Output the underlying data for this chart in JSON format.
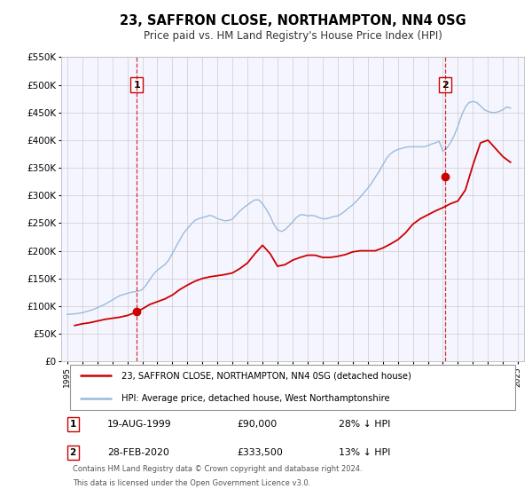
{
  "title": "23, SAFFRON CLOSE, NORTHAMPTON, NN4 0SG",
  "subtitle": "Price paid vs. HM Land Registry's House Price Index (HPI)",
  "ylim": [
    0,
    550000
  ],
  "yticks": [
    0,
    50000,
    100000,
    150000,
    200000,
    250000,
    300000,
    350000,
    400000,
    450000,
    500000,
    550000
  ],
  "ytick_labels": [
    "£0",
    "£50K",
    "£100K",
    "£150K",
    "£200K",
    "£250K",
    "£300K",
    "£350K",
    "£400K",
    "£450K",
    "£500K",
    "£550K"
  ],
  "xlim_start": 1994.6,
  "xlim_end": 2025.4,
  "hpi_color": "#99bbdd",
  "price_color": "#cc0000",
  "vline_color": "#cc0000",
  "grid_color": "#cccccc",
  "bg_color": "#ffffff",
  "plot_bg_color": "#f5f5ff",
  "legend_label_price": "23, SAFFRON CLOSE, NORTHAMPTON, NN4 0SG (detached house)",
  "legend_label_hpi": "HPI: Average price, detached house, West Northamptonshire",
  "sale1_label": "1",
  "sale1_date": "19-AUG-1999",
  "sale1_price": "£90,000",
  "sale1_pct": "28% ↓ HPI",
  "sale1_year": 1999.63,
  "sale1_value": 90000,
  "sale2_label": "2",
  "sale2_date": "28-FEB-2020",
  "sale2_price": "£333,500",
  "sale2_pct": "13% ↓ HPI",
  "sale2_year": 2020.16,
  "sale2_value": 333500,
  "footer_line1": "Contains HM Land Registry data © Crown copyright and database right 2024.",
  "footer_line2": "This data is licensed under the Open Government Licence v3.0.",
  "hpi_x": [
    1995.0,
    1995.25,
    1995.5,
    1995.75,
    1996.0,
    1996.25,
    1996.5,
    1996.75,
    1997.0,
    1997.25,
    1997.5,
    1997.75,
    1998.0,
    1998.25,
    1998.5,
    1998.75,
    1999.0,
    1999.25,
    1999.5,
    1999.75,
    2000.0,
    2000.25,
    2000.5,
    2000.75,
    2001.0,
    2001.25,
    2001.5,
    2001.75,
    2002.0,
    2002.25,
    2002.5,
    2002.75,
    2003.0,
    2003.25,
    2003.5,
    2003.75,
    2004.0,
    2004.25,
    2004.5,
    2004.75,
    2005.0,
    2005.25,
    2005.5,
    2005.75,
    2006.0,
    2006.25,
    2006.5,
    2006.75,
    2007.0,
    2007.25,
    2007.5,
    2007.75,
    2008.0,
    2008.25,
    2008.5,
    2008.75,
    2009.0,
    2009.25,
    2009.5,
    2009.75,
    2010.0,
    2010.25,
    2010.5,
    2010.75,
    2011.0,
    2011.25,
    2011.5,
    2011.75,
    2012.0,
    2012.25,
    2012.5,
    2012.75,
    2013.0,
    2013.25,
    2013.5,
    2013.75,
    2014.0,
    2014.25,
    2014.5,
    2014.75,
    2015.0,
    2015.25,
    2015.5,
    2015.75,
    2016.0,
    2016.25,
    2016.5,
    2016.75,
    2017.0,
    2017.25,
    2017.5,
    2017.75,
    2018.0,
    2018.25,
    2018.5,
    2018.75,
    2019.0,
    2019.25,
    2019.5,
    2019.75,
    2020.0,
    2020.25,
    2020.5,
    2020.75,
    2021.0,
    2021.25,
    2021.5,
    2021.75,
    2022.0,
    2022.25,
    2022.5,
    2022.75,
    2023.0,
    2023.25,
    2023.5,
    2023.75,
    2024.0,
    2024.25,
    2024.5
  ],
  "hpi_y": [
    85000,
    85500,
    86000,
    87000,
    88000,
    90000,
    92000,
    94000,
    97000,
    100000,
    103000,
    107000,
    111000,
    115000,
    119000,
    121000,
    123000,
    125000,
    126000,
    127000,
    130000,
    138000,
    148000,
    158000,
    165000,
    170000,
    175000,
    183000,
    195000,
    208000,
    220000,
    232000,
    240000,
    248000,
    255000,
    258000,
    260000,
    262000,
    264000,
    262000,
    258000,
    256000,
    254000,
    255000,
    257000,
    265000,
    272000,
    278000,
    283000,
    288000,
    292000,
    292000,
    285000,
    275000,
    263000,
    248000,
    238000,
    235000,
    238000,
    245000,
    252000,
    260000,
    265000,
    265000,
    263000,
    264000,
    263000,
    260000,
    258000,
    258000,
    260000,
    262000,
    263000,
    267000,
    272000,
    278000,
    283000,
    290000,
    297000,
    305000,
    313000,
    322000,
    333000,
    343000,
    355000,
    367000,
    375000,
    380000,
    383000,
    385000,
    387000,
    388000,
    388000,
    388000,
    388000,
    388000,
    390000,
    393000,
    395000,
    398000,
    380000,
    385000,
    395000,
    408000,
    425000,
    445000,
    460000,
    468000,
    470000,
    468000,
    462000,
    455000,
    452000,
    450000,
    450000,
    452000,
    455000,
    460000,
    458000
  ],
  "price_x": [
    1995.5,
    1996.0,
    1996.5,
    1997.0,
    1997.5,
    1998.0,
    1998.5,
    1999.0,
    1999.5,
    2000.0,
    2000.5,
    2001.0,
    2001.5,
    2002.0,
    2002.5,
    2003.0,
    2003.5,
    2004.0,
    2004.5,
    2005.0,
    2005.5,
    2006.0,
    2006.5,
    2007.0,
    2007.5,
    2008.0,
    2008.5,
    2009.0,
    2009.5,
    2010.0,
    2010.5,
    2011.0,
    2011.5,
    2012.0,
    2012.5,
    2013.0,
    2013.5,
    2014.0,
    2014.5,
    2015.0,
    2015.5,
    2016.0,
    2016.5,
    2017.0,
    2017.5,
    2018.0,
    2018.5,
    2019.0,
    2019.5,
    2020.0,
    2020.5,
    2021.0,
    2021.5,
    2022.0,
    2022.5,
    2023.0,
    2023.5,
    2024.0,
    2024.5
  ],
  "price_y": [
    65000,
    68000,
    70000,
    73000,
    76000,
    78000,
    80000,
    83000,
    88000,
    95000,
    103000,
    108000,
    113000,
    120000,
    130000,
    138000,
    145000,
    150000,
    153000,
    155000,
    157000,
    160000,
    168000,
    178000,
    195000,
    210000,
    195000,
    172000,
    175000,
    183000,
    188000,
    192000,
    192000,
    188000,
    188000,
    190000,
    193000,
    198000,
    200000,
    200000,
    200000,
    205000,
    212000,
    220000,
    232000,
    248000,
    258000,
    265000,
    272000,
    278000,
    285000,
    290000,
    310000,
    355000,
    395000,
    400000,
    385000,
    370000,
    360000
  ]
}
